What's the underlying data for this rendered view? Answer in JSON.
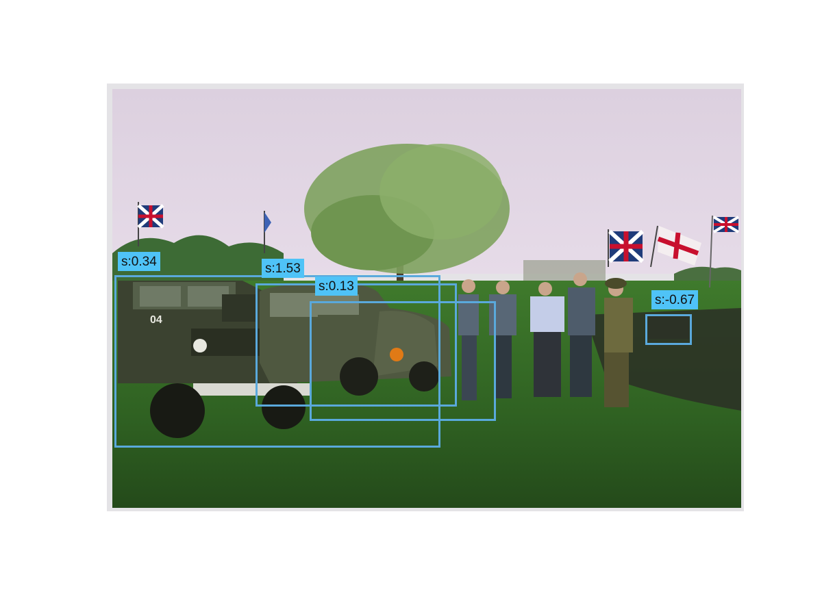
{
  "detection_box_color": "#5aa9dc",
  "label_background_color": "#4fc3f7",
  "detections": [
    {
      "label": "s:0.34"
    },
    {
      "label": "s:1.53"
    },
    {
      "label": "s:0.13"
    },
    {
      "label": "s:-0.67"
    }
  ],
  "photo": {
    "vehicle_markings": [
      "04"
    ]
  }
}
